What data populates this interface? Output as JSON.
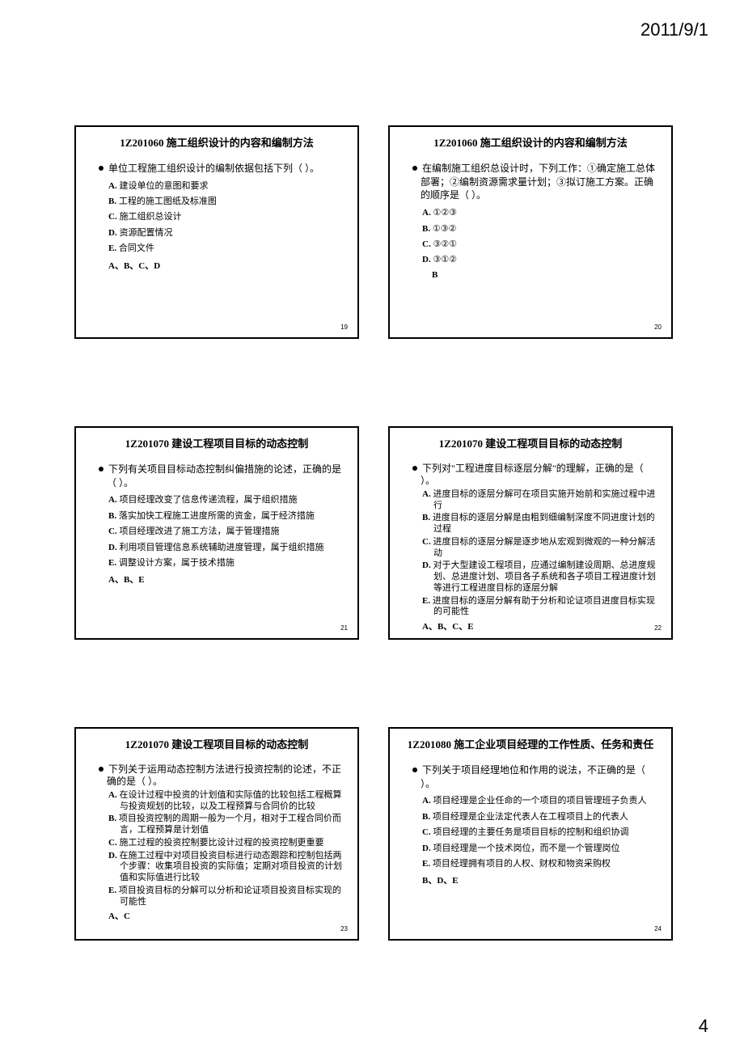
{
  "header": {
    "date": "2011/9/1",
    "page_number": "4"
  },
  "slides": [
    {
      "number": "19",
      "title": "1Z201060 施工组织设计的内容和编制方法",
      "stem": "单位工程施工组织设计的编制依据包括下列（   ）。",
      "options": [
        {
          "label": "A.",
          "text": "建设单位的意图和要求"
        },
        {
          "label": "B.",
          "text": "工程的施工图纸及标准图"
        },
        {
          "label": "C.",
          "text": "施工组织总设计"
        },
        {
          "label": "D.",
          "text": "资源配置情况"
        },
        {
          "label": "E.",
          "text": "合同文件"
        }
      ],
      "answer": "A、B、C、D",
      "answer_indent": false,
      "compact": false
    },
    {
      "number": "20",
      "title": "1Z201060 施工组织设计的内容和编制方法",
      "stem": "在编制施工组织总设计时，下列工作：①确定施工总体部署；②编制资源需求量计划；③拟订施工方案。正确的顺序是（   ）。",
      "options": [
        {
          "label": "A.",
          "text": "①②③"
        },
        {
          "label": "B.",
          "text": "①③②"
        },
        {
          "label": "C.",
          "text": "③②①"
        },
        {
          "label": "D.",
          "text": "③①②"
        }
      ],
      "answer": "B",
      "answer_indent": true,
      "compact": false
    },
    {
      "number": "21",
      "title": "1Z201070 建设工程项目目标的动态控制",
      "stem": "下列有关项目目标动态控制纠偏措施的论述，正确的是（   ）。",
      "options": [
        {
          "label": "A.",
          "text": "项目经理改变了信息传递流程，属于组织措施"
        },
        {
          "label": "B.",
          "text": "落实加快工程施工进度所需的资金，属于经济措施"
        },
        {
          "label": "C.",
          "text": "项目经理改进了施工方法，属于管理措施"
        },
        {
          "label": "D.",
          "text": "利用项目管理信息系统辅助进度管理，属于组织措施"
        },
        {
          "label": "E.",
          "text": "调整设计方案，属于技术措施"
        }
      ],
      "answer": "A、B、E",
      "answer_indent": false,
      "compact": false
    },
    {
      "number": "22",
      "title": "1Z201070 建设工程项目目标的动态控制",
      "stem": "下列对\"工程进度目标逐层分解\"的理解，正确的是（   ）。",
      "options": [
        {
          "label": "A.",
          "text": "进度目标的逐层分解可在项目实施开始前和实施过程中进行"
        },
        {
          "label": "B.",
          "text": "进度目标的逐层分解是由粗到细编制深度不同进度计划的过程"
        },
        {
          "label": "C.",
          "text": "进度目标的逐层分解是逐步地从宏观到微观的一种分解活动"
        },
        {
          "label": "D.",
          "text": "对于大型建设工程项目，应通过编制建设周期、总进度规划、总进度计划、项目各子系统和各子项目工程进度计划等进行工程进度目标的逐层分解"
        },
        {
          "label": "E.",
          "text": "进度目标的逐层分解有助于分析和论证项目进度目标实现的可能性"
        }
      ],
      "answer": "A、B、C、E",
      "answer_indent": false,
      "compact": true
    },
    {
      "number": "23",
      "title": "1Z201070 建设工程项目目标的动态控制",
      "stem": "下列关于运用动态控制方法进行投资控制的论述，不正确的是（   ）。",
      "options": [
        {
          "label": "A.",
          "text": "在设计过程中投资的计划值和实际值的比较包括工程概算与投资规划的比较，以及工程预算与合同价的比较"
        },
        {
          "label": "B.",
          "text": "项目投资控制的周期一般为一个月，相对于工程合同价而言，工程预算是计划值"
        },
        {
          "label": "C.",
          "text": "施工过程的投资控制要比设计过程的投资控制更重要"
        },
        {
          "label": "D.",
          "text": "在施工过程中对项目投资目标进行动态跟踪和控制包括两个步骤：收集项目投资的实际值；定期对项目投资的计划值和实际值进行比较"
        },
        {
          "label": "E.",
          "text": "项目投资目标的分解可以分析和论证项目投资目标实现的可能性"
        }
      ],
      "answer": "A、C",
      "answer_indent": false,
      "compact": true
    },
    {
      "number": "24",
      "title": "1Z201080 施工企业项目经理的工作性质、任务和责任",
      "stem": "下列关于项目经理地位和作用的说法，不正确的是（   ）。",
      "options": [
        {
          "label": "A.",
          "text": "项目经理是企业任命的一个项目的项目管理班子负责人"
        },
        {
          "label": "B.",
          "text": "项目经理是企业法定代表人在工程项目上的代表人"
        },
        {
          "label": "C.",
          "text": "项目经理的主要任务是项目目标的控制和组织协调"
        },
        {
          "label": "D.",
          "text": "项目经理是一个技术岗位，而不是一个管理岗位"
        },
        {
          "label": "E.",
          "text": "项目经理拥有项目的人权、财权和物资采购权"
        }
      ],
      "answer": "B、D、E",
      "answer_indent": false,
      "compact": false
    }
  ],
  "style": {
    "background_color": "#ffffff",
    "border_color": "#000000",
    "text_color": "#000000",
    "title_fontsize": 13,
    "body_fontsize": 11,
    "header_fontsize": 22,
    "slide_width": 352,
    "slide_height": 264,
    "grid_cols": 2,
    "grid_rows": 3
  }
}
